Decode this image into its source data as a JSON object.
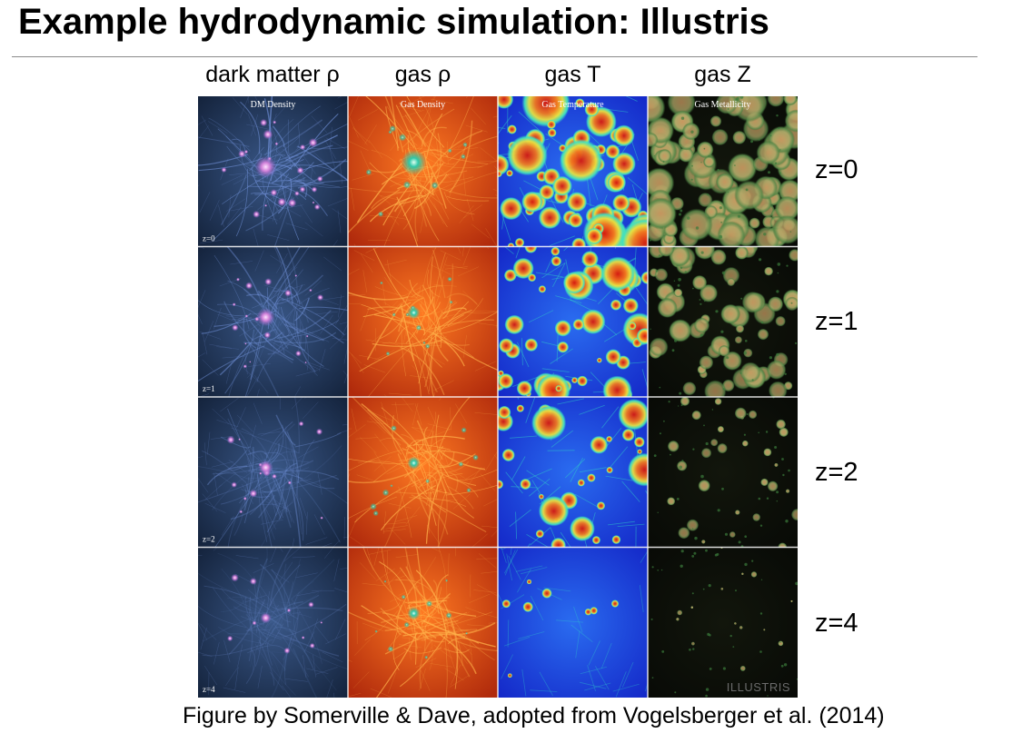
{
  "slide": {
    "title": "Example hydrodynamic simulation: Illustris",
    "caption": "Figure by Somerville & Dave, adopted from Vogelsberger et al. (2014)"
  },
  "figure": {
    "columns": [
      {
        "header": "dark matter ρ",
        "panel_title": "DM Density"
      },
      {
        "header": "gas ρ",
        "panel_title": "Gas Density"
      },
      {
        "header": "gas T",
        "panel_title": "Gas Temperature"
      },
      {
        "header": "gas Z",
        "panel_title": "Gas Metallicity"
      }
    ],
    "rows": [
      {
        "label": "z=0",
        "panel_label": "z=0"
      },
      {
        "label": "z=1",
        "panel_label": "z=1"
      },
      {
        "label": "z=2",
        "panel_label": "z=2"
      },
      {
        "label": "z=4",
        "panel_label": "z=4"
      }
    ],
    "watermark": "ILLUSTRIS",
    "colors": {
      "dm_background": "#1a2c48",
      "dm_filament": "#6f8fd6",
      "dm_halo": "#e6a6e6",
      "gas_density_background": "#c83a12",
      "gas_density_filament": "#ffb24a",
      "gas_density_core": "#2fd0a8",
      "temperature_cold": "#1530d8",
      "temperature_warm": "#30d8c8",
      "temperature_hot": "#e83018",
      "metallicity_background": "#0c0e08",
      "metallicity_enriched": "#b8a060",
      "metallicity_low": "#3a7a3a"
    }
  }
}
